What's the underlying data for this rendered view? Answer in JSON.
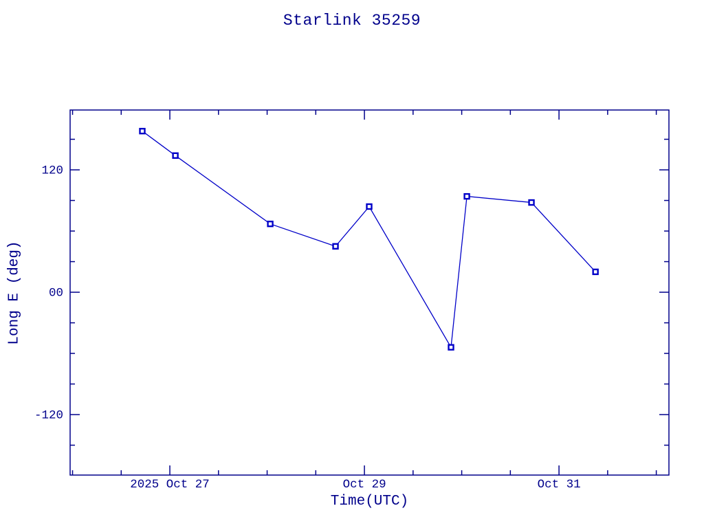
{
  "chart_data": {
    "type": "line",
    "title": "Starlink 35259",
    "xlabel": "Time(UTC)",
    "ylabel": "Long E (deg)",
    "grid": false,
    "legend": "none",
    "colors": {
      "axis": "#00008b",
      "series": "#0000c8",
      "background": "#ffffff"
    },
    "x_axis": {
      "unit": "days relative to 2025 Oct 27 00:00 UTC",
      "range": [
        -1.025,
        5.13
      ],
      "minor_tick_interval": 0.5,
      "major_ticks": [
        {
          "pos": 0,
          "label": "2025 Oct 27"
        },
        {
          "pos": 2,
          "label": "Oct 29"
        },
        {
          "pos": 4,
          "label": "Oct 31"
        }
      ]
    },
    "y_axis": {
      "unit": "deg",
      "range": [
        -179.3,
        178.7
      ],
      "minor_tick_interval": 30,
      "major_ticks": [
        {
          "value": 120,
          "label": "120"
        },
        {
          "value": 0,
          "label": "00"
        },
        {
          "value": -120,
          "label": "-120"
        }
      ]
    },
    "series": [
      {
        "name": "Long E",
        "marker": "open-square",
        "points": [
          {
            "x": -0.283,
            "y": 158,
            "time_utc": "2025 Oct 26 ~17:10"
          },
          {
            "x": 0.057,
            "y": 134,
            "time_utc": "2025 Oct 27 ~01:20"
          },
          {
            "x": 1.032,
            "y": 67,
            "time_utc": "2025 Oct 28 ~00:45"
          },
          {
            "x": 1.703,
            "y": 45,
            "time_utc": "2025 Oct 28 ~16:50"
          },
          {
            "x": 2.049,
            "y": 84,
            "time_utc": "2025 Oct 29 ~01:10"
          },
          {
            "x": 2.89,
            "y": -54,
            "time_utc": "2025 Oct 29 ~21:20"
          },
          {
            "x": 3.053,
            "y": 94,
            "time_utc": "2025 Oct 30 ~01:15"
          },
          {
            "x": 3.717,
            "y": 88,
            "time_utc": "2025 Oct 30 ~17:10"
          },
          {
            "x": 4.375,
            "y": 20,
            "time_utc": "2025 Oct 31 ~09:00"
          }
        ]
      }
    ]
  }
}
